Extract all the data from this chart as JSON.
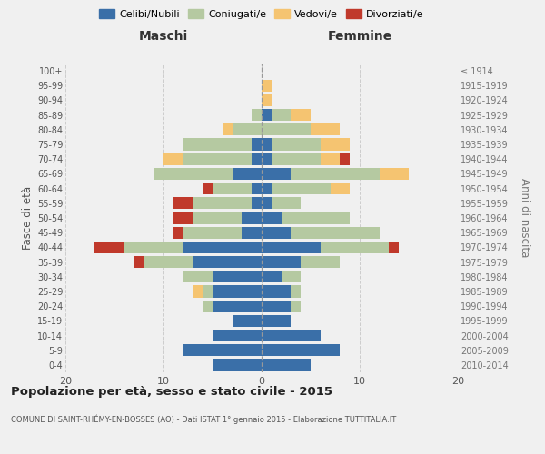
{
  "age_groups": [
    "0-4",
    "5-9",
    "10-14",
    "15-19",
    "20-24",
    "25-29",
    "30-34",
    "35-39",
    "40-44",
    "45-49",
    "50-54",
    "55-59",
    "60-64",
    "65-69",
    "70-74",
    "75-79",
    "80-84",
    "85-89",
    "90-94",
    "95-99",
    "100+"
  ],
  "birth_years": [
    "2010-2014",
    "2005-2009",
    "2000-2004",
    "1995-1999",
    "1990-1994",
    "1985-1989",
    "1980-1984",
    "1975-1979",
    "1970-1974",
    "1965-1969",
    "1960-1964",
    "1955-1959",
    "1950-1954",
    "1945-1949",
    "1940-1944",
    "1935-1939",
    "1930-1934",
    "1925-1929",
    "1920-1924",
    "1915-1919",
    "≤ 1914"
  ],
  "males": {
    "celibi": [
      5,
      8,
      5,
      3,
      5,
      5,
      5,
      7,
      8,
      2,
      2,
      1,
      1,
      3,
      1,
      1,
      0,
      0,
      0,
      0,
      0
    ],
    "coniugati": [
      0,
      0,
      0,
      0,
      1,
      1,
      3,
      5,
      6,
      6,
      5,
      6,
      4,
      8,
      7,
      7,
      3,
      1,
      0,
      0,
      0
    ],
    "vedovi": [
      0,
      0,
      0,
      0,
      0,
      1,
      0,
      0,
      0,
      0,
      0,
      0,
      0,
      0,
      2,
      0,
      1,
      0,
      0,
      0,
      0
    ],
    "divorziati": [
      0,
      0,
      0,
      0,
      0,
      0,
      0,
      1,
      3,
      1,
      2,
      2,
      1,
      0,
      0,
      0,
      0,
      0,
      0,
      0,
      0
    ]
  },
  "females": {
    "nubili": [
      5,
      8,
      6,
      3,
      3,
      3,
      2,
      4,
      6,
      3,
      2,
      1,
      1,
      3,
      1,
      1,
      0,
      1,
      0,
      0,
      0
    ],
    "coniugate": [
      0,
      0,
      0,
      0,
      1,
      1,
      2,
      4,
      7,
      9,
      7,
      3,
      6,
      9,
      5,
      5,
      5,
      2,
      0,
      0,
      0
    ],
    "vedove": [
      0,
      0,
      0,
      0,
      0,
      0,
      0,
      0,
      0,
      0,
      0,
      0,
      2,
      3,
      2,
      3,
      3,
      2,
      1,
      1,
      0
    ],
    "divorziate": [
      0,
      0,
      0,
      0,
      0,
      0,
      0,
      0,
      1,
      0,
      0,
      0,
      0,
      0,
      1,
      0,
      0,
      0,
      0,
      0,
      0
    ]
  },
  "colors": {
    "celibi": "#3a6fa8",
    "coniugati": "#b5c9a1",
    "vedovi": "#f5c471",
    "divorziati": "#c0392b"
  },
  "title": "Popolazione per età, sesso e stato civile - 2015",
  "subtitle": "COMUNE DI SAINT-RHÉMY-EN-BOSSES (AO) - Dati ISTAT 1° gennaio 2015 - Elaborazione TUTTITALIA.IT",
  "xlabel_left": "Maschi",
  "xlabel_right": "Femmine",
  "ylabel_left": "Fasce di età",
  "ylabel_right": "Anni di nascita",
  "xlim": 20,
  "background_color": "#f0f0f0",
  "grid_color": "#cccccc"
}
